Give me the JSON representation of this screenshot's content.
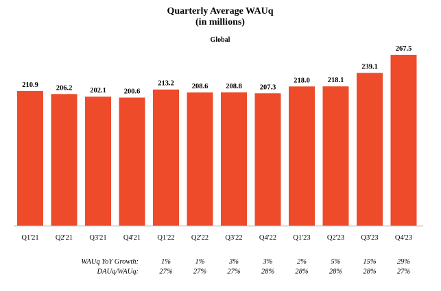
{
  "chart_data": {
    "type": "bar",
    "title": "Quarterly Average WAUq",
    "title_line2": "(in millions)",
    "subtitle": "Global",
    "categories": [
      "Q1'21",
      "Q2'21",
      "Q3'21",
      "Q4'21",
      "Q1'22",
      "Q2'22",
      "Q3'22",
      "Q4'22",
      "Q1'23",
      "Q2'23",
      "Q3'23",
      "Q4'23"
    ],
    "values": [
      210.9,
      206.2,
      202.1,
      200.6,
      213.2,
      208.6,
      208.8,
      207.3,
      218.0,
      218.1,
      239.1,
      267.5
    ],
    "value_labels": [
      "210.9",
      "206.2",
      "202.1",
      "200.6",
      "213.2",
      "208.6",
      "208.8",
      "207.3",
      "218.0",
      "218.1",
      "239.1",
      "267.5"
    ],
    "ylim": [
      0,
      267.5
    ],
    "grid": false,
    "bar_color": "#EE4B2B",
    "footer_rows": [
      {
        "label": "WAUq YoY Growth:",
        "values": [
          "1%",
          "1%",
          "3%",
          "3%",
          "2%",
          "5%",
          "15%",
          "29%"
        ]
      },
      {
        "label": "DAUq/WAUq:",
        "values": [
          "27%",
          "27%",
          "27%",
          "28%",
          "28%",
          "28%",
          "28%",
          "27%"
        ]
      }
    ]
  }
}
